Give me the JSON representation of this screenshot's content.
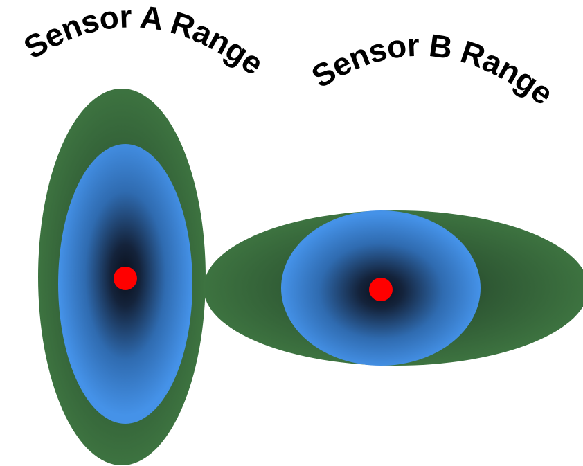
{
  "sensors": [
    {
      "label": "Sensor A Range",
      "outer_color": "#3d7340",
      "inner_color": "#4592e8",
      "center_color": "#ff0000"
    },
    {
      "label": "Sensor B Range",
      "outer_color": "#3d7340",
      "inner_color": "#4592e8",
      "center_color": "#ff0000"
    }
  ],
  "label_color": "#000000"
}
